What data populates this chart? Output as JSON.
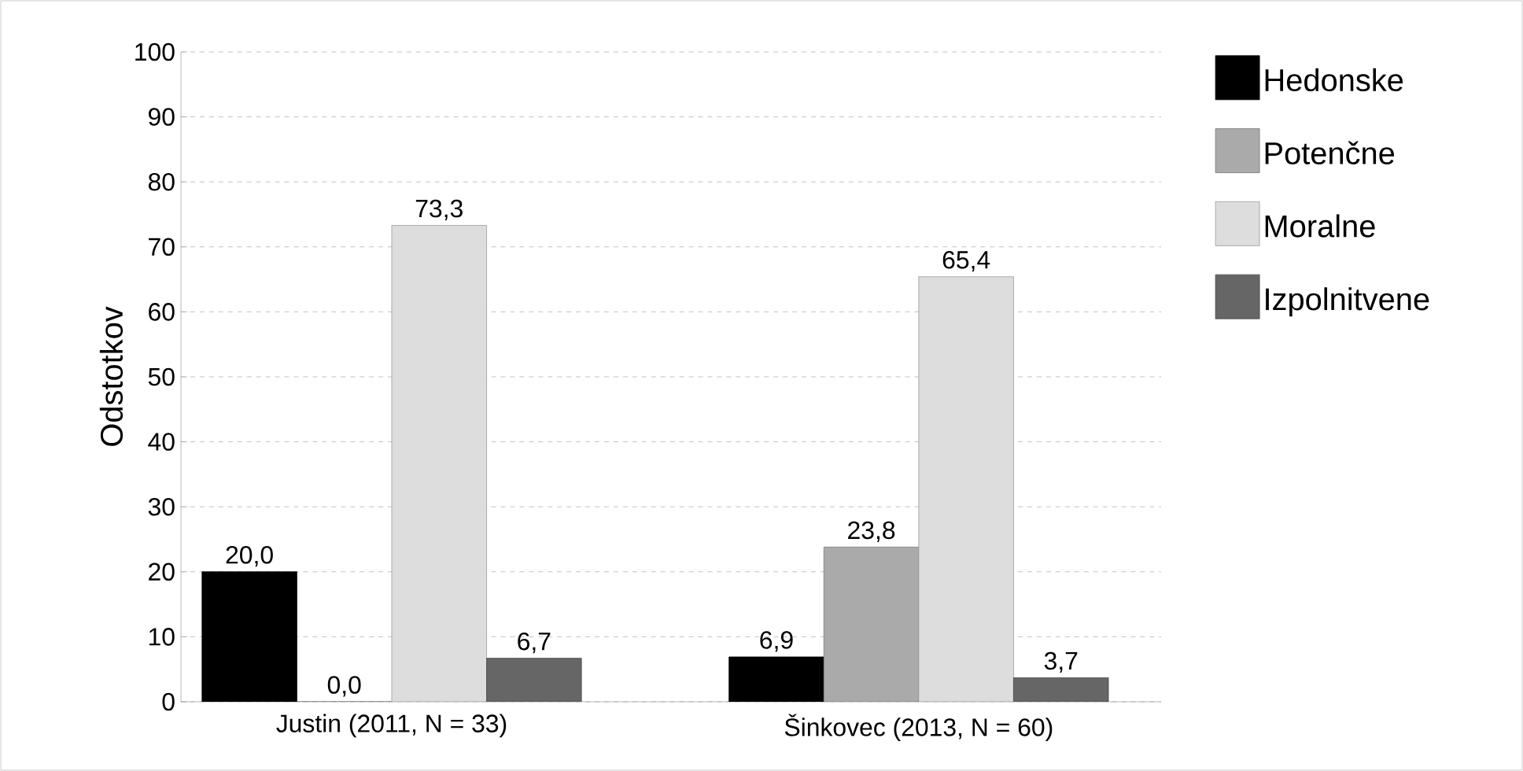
{
  "chart_data": {
    "type": "bar",
    "ylabel": "Odstotkov",
    "categories": [
      "Justin (2011, N = 33)",
      "Šinkovec (2013, N = 60)"
    ],
    "series": [
      {
        "name": "Hedonske",
        "color": "#000000",
        "values": [
          20.0,
          6.9
        ],
        "value_labels": [
          "20,0",
          "6,9"
        ]
      },
      {
        "name": "Potenčne",
        "color": "#aaaaaa",
        "values": [
          0.0,
          23.8
        ],
        "value_labels": [
          "0,0",
          "23,8"
        ]
      },
      {
        "name": "Moralne",
        "color": "#dddddd",
        "values": [
          73.3,
          65.4
        ],
        "value_labels": [
          "73,3",
          "65,4"
        ]
      },
      {
        "name": "Izpolnitvene",
        "color": "#666666",
        "values": [
          6.7,
          3.7
        ],
        "value_labels": [
          "6,7",
          "3,7"
        ]
      }
    ],
    "ylim": [
      0,
      100
    ],
    "yticks": [
      0,
      10,
      20,
      30,
      40,
      50,
      60,
      70,
      80,
      90,
      100
    ],
    "grid": "y",
    "legend": "right"
  }
}
